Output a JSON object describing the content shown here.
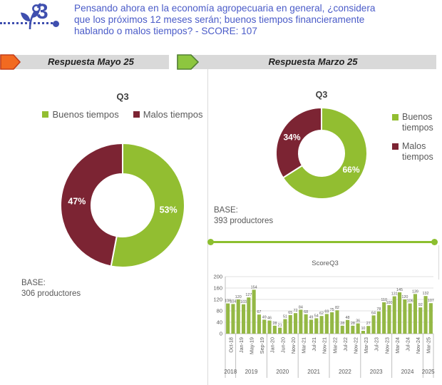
{
  "header": {
    "number": "3",
    "question_lines": [
      "Pensando ahora en la economía agropecuaria en general, ¿considera",
      "que los próximos 12 meses serán; buenos tiempos financieramente",
      "hablando o malos tiempos? - SCORE: 107"
    ],
    "score": 107
  },
  "sections": {
    "may": {
      "title": "Respuesta Mayo 25",
      "arrow_color": "#F26A21",
      "arrow_border": "#C43E1C"
    },
    "march": {
      "title": "Respuesta Marzo 25",
      "arrow_color": "#8DC63F",
      "arrow_border": "#538135"
    }
  },
  "colors": {
    "green": "#92BE31",
    "maroon": "#7C2433",
    "bar_green": "#94B845",
    "line_green": "#8CBF2F",
    "indigo": "#3F4FAF",
    "question_blue": "#4A5BC8",
    "text_gray": "#595959",
    "title_gray": "#404040",
    "grid_gray": "#D9D9D9",
    "axis_gray": "#BFBFBF",
    "bar_bg": "#D9D9D9"
  },
  "chart_data": [
    {
      "id": "donut_may",
      "type": "pie",
      "title": "Q3",
      "labels": [
        "Buenos tiempos",
        "Malos tiempos"
      ],
      "values": [
        53,
        47
      ],
      "value_labels": [
        "53%",
        "47%"
      ],
      "colors": [
        "#92BE31",
        "#7C2433"
      ],
      "legend_position": "top",
      "base_label": "BASE:",
      "base_value": "306 productores"
    },
    {
      "id": "donut_march",
      "type": "pie",
      "title": "Q3",
      "labels": [
        "Buenos tiempos",
        "Malos tiempos"
      ],
      "values": [
        66,
        34
      ],
      "value_labels": [
        "66%",
        "34%"
      ],
      "colors": [
        "#92BE31",
        "#7C2433"
      ],
      "legend_position": "right",
      "base_label": "BASE:",
      "base_value": "393 productores"
    },
    {
      "id": "score_trend",
      "type": "bar",
      "title": "ScoreQ3",
      "ylabel": "",
      "xlabel": "",
      "ylim": [
        0,
        200
      ],
      "yticks": [
        0,
        40,
        80,
        120,
        160,
        200
      ],
      "grid": true,
      "bar_color": "#94B845",
      "tick_every": 2,
      "values": [
        106,
        104,
        120,
        103,
        127,
        154,
        67,
        49,
        46,
        28,
        21,
        51,
        65,
        72,
        84,
        68,
        49,
        54,
        62,
        69,
        75,
        82,
        28,
        48,
        28,
        36,
        10,
        27,
        64,
        78,
        110,
        100,
        131,
        145,
        120,
        106,
        139,
        92,
        132,
        107
      ],
      "tick_labels": [
        "Oct-18",
        "Jan-19",
        "May-19",
        "Sep-19",
        "Jan-20",
        "Jun-20",
        "Nov-20",
        "Mar-21",
        "Jul-21",
        "Nov-21",
        "Mar-22",
        "Jul-22",
        "Nov-22",
        "Mar-23",
        "Jul-23",
        "Nov-23",
        "Mar-24",
        "Jul-24",
        "Nov-24",
        "Mar-25"
      ],
      "year_groups": [
        {
          "year": "2018",
          "bars": 2
        },
        {
          "year": "2019",
          "bars": 6
        },
        {
          "year": "2020",
          "bars": 6
        },
        {
          "year": "2021",
          "bars": 6
        },
        {
          "year": "2022",
          "bars": 6
        },
        {
          "year": "2023",
          "bars": 6
        },
        {
          "year": "2024",
          "bars": 6
        },
        {
          "year": "2025",
          "bars": 2
        }
      ]
    }
  ]
}
